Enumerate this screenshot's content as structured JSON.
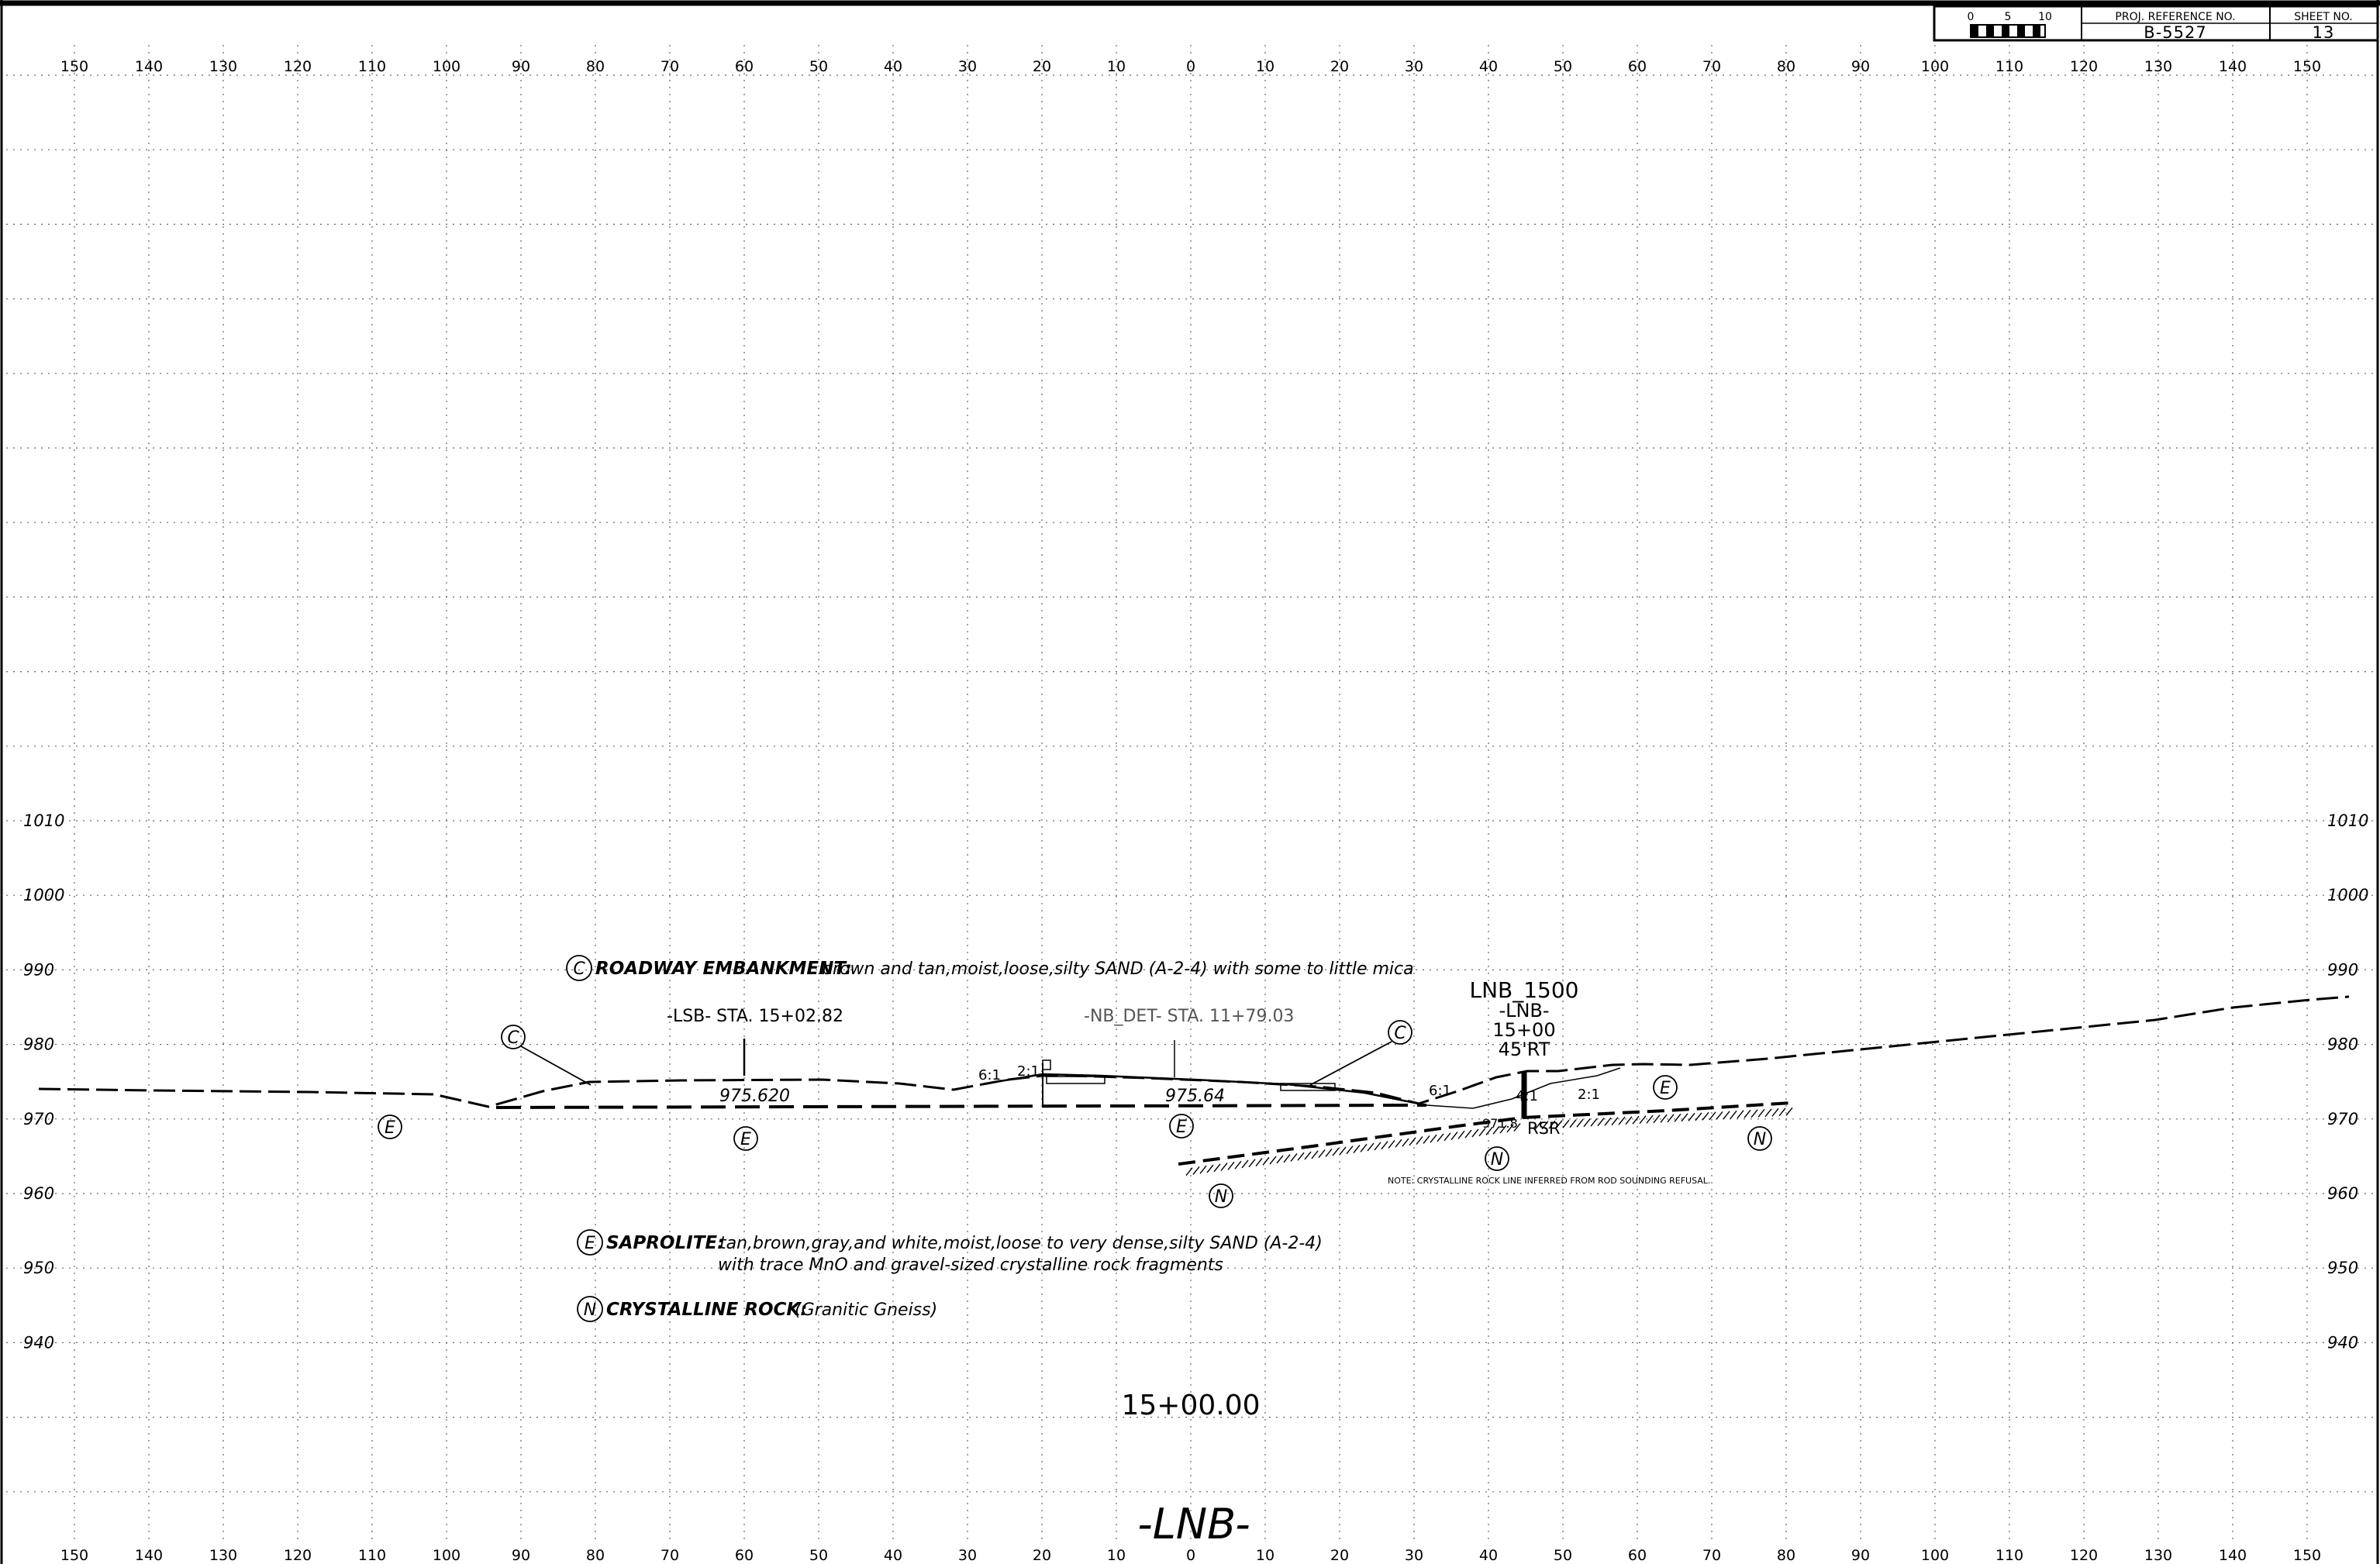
{
  "title_block": {
    "scale_labels": [
      "0",
      "5",
      "10"
    ],
    "proj_ref_header": "PROJ. REFERENCE NO.",
    "proj_ref_value": "B-5527",
    "sheet_header": "SHEET NO.",
    "sheet_value": "13"
  },
  "axes": {
    "offset_ticks": [
      "150",
      "140",
      "130",
      "120",
      "110",
      "100",
      "90",
      "80",
      "70",
      "60",
      "50",
      "40",
      "30",
      "20",
      "10",
      "0",
      "10",
      "20",
      "30",
      "40",
      "50",
      "60",
      "70",
      "80",
      "90",
      "100",
      "110",
      "120",
      "130",
      "140",
      "150"
    ],
    "elevation_ticks": [
      "1010",
      "1000",
      "990",
      "980",
      "970",
      "960",
      "950",
      "940"
    ]
  },
  "stations": {
    "lsb": "-LSB- STA. 15+02.82",
    "nb_det": "-NB_DET- STA. 11+79.03"
  },
  "elevation_labels": {
    "left": "975.620",
    "center": "975.64"
  },
  "slopes": {
    "s1": "6:1",
    "s2": "2:1",
    "s3": "6:1",
    "s4": "4:1",
    "s5": "2:1"
  },
  "boring": {
    "id": "LNB_1500",
    "alignment": "-LNB-",
    "station": "15+00",
    "offset": "45'RT",
    "elev": "971.8",
    "refusal": "RSR"
  },
  "legend": {
    "c_symbol": "C",
    "c_title": "ROADWAY EMBANKMENT:",
    "c_desc": "brown and tan,moist,loose,silty SAND (A-2-4) with some to little mica",
    "e_symbol": "E",
    "e_title": "SAPROLITE:",
    "e_desc1": "tan,brown,gray,and white,moist,loose to very dense,silty SAND (A-2-4)",
    "e_desc2": "with trace MnO and gravel-sized crystalline rock fragments",
    "n_symbol": "N",
    "n_title": "CRYSTALLINE ROCK:",
    "n_desc": "(Granitic Gneiss)"
  },
  "note": "NOTE: CRYSTALLINE ROCK LINE INFERRED FROM ROD SOUNDING REFUSAL.",
  "section_station": "15+00.00",
  "alignment_label": "-LNB-"
}
